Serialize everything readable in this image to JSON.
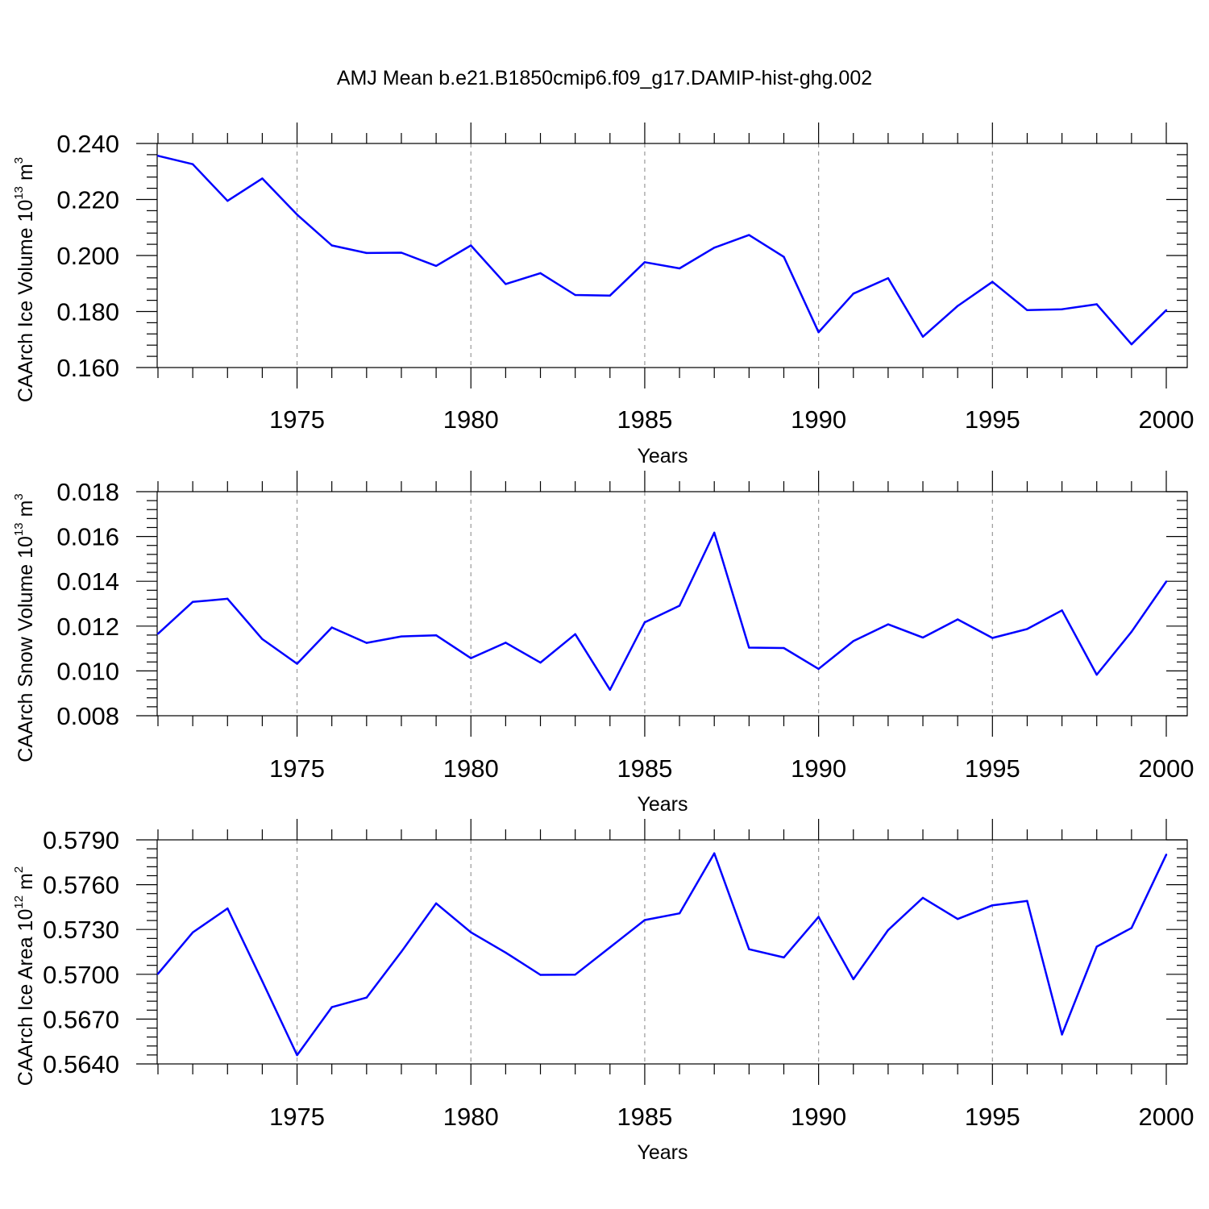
{
  "title": "AMJ Mean b.e21.B1850cmip6.f09_g17.DAMIP-hist-ghg.002",
  "colors": {
    "line": "#0000ff",
    "axis": "#000000",
    "grid": "#999999"
  },
  "chart_data": [
    {
      "type": "line",
      "xlabel": "Years",
      "ylabel": {
        "prefix": "CAArch Ice Volume 10",
        "exp": "13",
        "unit": " m",
        "unit_exp": "3"
      },
      "xlim": [
        1971,
        2000
      ],
      "ylim": [
        0.16,
        0.24
      ],
      "yticks": [
        0.16,
        0.18,
        0.2,
        0.22,
        0.24
      ],
      "ytick_labels": [
        "0.160",
        "0.180",
        "0.200",
        "0.220",
        "0.240"
      ],
      "xticks": [
        1975,
        1980,
        1985,
        1990,
        1995,
        2000
      ],
      "xtick_labels": [
        "1975",
        "1980",
        "1985",
        "1990",
        "1995",
        "2000"
      ],
      "grid": "vertical dashed at major x ticks",
      "x": [
        1971,
        1972,
        1973,
        1974,
        1975,
        1976,
        1977,
        1978,
        1979,
        1980,
        1981,
        1982,
        1983,
        1984,
        1985,
        1986,
        1987,
        1988,
        1989,
        1990,
        1991,
        1992,
        1993,
        1994,
        1995,
        1996,
        1997,
        1998,
        1999,
        2000
      ],
      "y": [
        0.2356,
        0.2326,
        0.2195,
        0.2275,
        0.2146,
        0.2036,
        0.2009,
        0.201,
        0.1963,
        0.2036,
        0.1898,
        0.1937,
        0.1859,
        0.1857,
        0.1976,
        0.1954,
        0.2028,
        0.2073,
        0.1995,
        0.1726,
        0.1864,
        0.1919,
        0.171,
        0.182,
        0.1906,
        0.1805,
        0.1808,
        0.1826,
        0.1683,
        0.1805
      ]
    },
    {
      "type": "line",
      "xlabel": "Years",
      "ylabel": {
        "prefix": "CAArch Snow Volume 10",
        "exp": "13",
        "unit": " m",
        "unit_exp": "3"
      },
      "xlim": [
        1971,
        2000
      ],
      "ylim": [
        0.008,
        0.018
      ],
      "yticks": [
        0.008,
        0.01,
        0.012,
        0.014,
        0.016,
        0.018
      ],
      "ytick_labels": [
        "0.008",
        "0.010",
        "0.012",
        "0.014",
        "0.016",
        "0.018"
      ],
      "xticks": [
        1975,
        1980,
        1985,
        1990,
        1995,
        2000
      ],
      "xtick_labels": [
        "1975",
        "1980",
        "1985",
        "1990",
        "1995",
        "2000"
      ],
      "grid": "vertical dashed at major x ticks",
      "x": [
        1971,
        1972,
        1973,
        1974,
        1975,
        1976,
        1977,
        1978,
        1979,
        1980,
        1981,
        1982,
        1983,
        1984,
        1985,
        1986,
        1987,
        1988,
        1989,
        1990,
        1991,
        1992,
        1993,
        1994,
        1995,
        1996,
        1997,
        1998,
        1999,
        2000
      ],
      "y": [
        0.01166,
        0.01308,
        0.01322,
        0.01142,
        0.01032,
        0.01194,
        0.01125,
        0.01154,
        0.01159,
        0.01057,
        0.01126,
        0.01037,
        0.01164,
        0.00916,
        0.01217,
        0.01291,
        0.01617,
        0.01104,
        0.01102,
        0.01009,
        0.01133,
        0.01208,
        0.01149,
        0.0123,
        0.01147,
        0.01187,
        0.0127,
        0.00983,
        0.01175,
        0.01399
      ]
    },
    {
      "type": "line",
      "xlabel": "Years",
      "ylabel": {
        "prefix": "CAArch Ice Area 10",
        "exp": "12",
        "unit": " m",
        "unit_exp": "2"
      },
      "xlim": [
        1971,
        2000
      ],
      "ylim": [
        0.564,
        0.579
      ],
      "yticks": [
        0.564,
        0.567,
        0.57,
        0.573,
        0.576,
        0.579
      ],
      "ytick_labels": [
        "0.5640",
        "0.5670",
        "0.5700",
        "0.5730",
        "0.5760",
        "0.5790"
      ],
      "xticks": [
        1975,
        1980,
        1985,
        1990,
        1995,
        2000
      ],
      "xtick_labels": [
        "1975",
        "1980",
        "1985",
        "1990",
        "1995",
        "2000"
      ],
      "grid": "vertical dashed at major x ticks",
      "x": [
        1971,
        1972,
        1973,
        1974,
        1975,
        1976,
        1977,
        1978,
        1979,
        1980,
        1981,
        1982,
        1983,
        1984,
        1985,
        1986,
        1987,
        1988,
        1989,
        1990,
        1991,
        1992,
        1993,
        1994,
        1995,
        1996,
        1997,
        1998,
        1999,
        2000
      ],
      "y": [
        0.57003,
        0.5728,
        0.57441,
        0.56954,
        0.56459,
        0.5678,
        0.56844,
        0.57151,
        0.57475,
        0.57281,
        0.57145,
        0.56996,
        0.56998,
        0.5718,
        0.57363,
        0.57408,
        0.5781,
        0.57168,
        0.57113,
        0.57384,
        0.56967,
        0.57296,
        0.57512,
        0.5737,
        0.57462,
        0.57491,
        0.56597,
        0.57185,
        0.5731,
        0.57801
      ]
    }
  ]
}
